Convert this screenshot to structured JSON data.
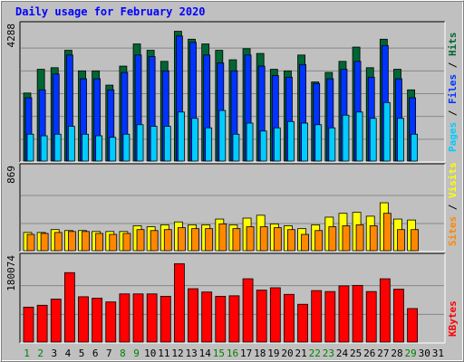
{
  "chart_data": {
    "title": "Daily usage for February 2020",
    "type": "bar",
    "days": [
      "1",
      "2",
      "3",
      "4",
      "5",
      "6",
      "7",
      "8",
      "9",
      "10",
      "11",
      "12",
      "13",
      "14",
      "15",
      "16",
      "17",
      "18",
      "19",
      "20",
      "21",
      "22",
      "23",
      "24",
      "25",
      "26",
      "27",
      "28",
      "29",
      "30",
      "31"
    ],
    "weekend_days": [
      "1",
      "2",
      "8",
      "9",
      "15",
      "16",
      "22",
      "23",
      "29"
    ],
    "legend_top": [
      "Pages",
      "Files",
      "Hits"
    ],
    "legend_mid": [
      "Sites",
      "Visits"
    ],
    "legend_bot": [
      "KBytes"
    ],
    "panels": {
      "top": {
        "ymax_label": "4288",
        "ymax": 4288,
        "hits": [
          2150,
          2900,
          2950,
          3500,
          2850,
          2850,
          2400,
          3000,
          3700,
          3500,
          3150,
          4100,
          3850,
          3700,
          3500,
          3200,
          3550,
          3400,
          2900,
          2850,
          3350,
          2500,
          2800,
          3150,
          3600,
          2950,
          3850,
          2900,
          2250,
          0,
          0
        ],
        "files": [
          2000,
          2250,
          2750,
          3350,
          2600,
          2600,
          2250,
          2800,
          3350,
          3300,
          2850,
          3950,
          3750,
          3350,
          3100,
          2850,
          3350,
          3000,
          2700,
          2650,
          3050,
          2450,
          2600,
          2900,
          3150,
          2650,
          3650,
          2600,
          2000,
          0,
          0
        ],
        "pages": [
          850,
          800,
          850,
          1100,
          850,
          800,
          750,
          850,
          1150,
          1100,
          1100,
          1550,
          1350,
          1050,
          1600,
          850,
          1200,
          950,
          1050,
          1250,
          1200,
          1150,
          1050,
          1450,
          1550,
          1350,
          1850,
          1350,
          850,
          0,
          0
        ]
      },
      "mid": {
        "ymax_label": "869",
        "ymax": 869,
        "visits": [
          190,
          190,
          220,
          210,
          210,
          200,
          200,
          200,
          260,
          250,
          270,
          300,
          270,
          270,
          330,
          270,
          340,
          370,
          280,
          260,
          230,
          270,
          350,
          390,
          400,
          360,
          500,
          330,
          320,
          0,
          0
        ],
        "sites": [
          170,
          180,
          190,
          200,
          200,
          180,
          170,
          180,
          220,
          210,
          220,
          240,
          230,
          230,
          280,
          230,
          250,
          250,
          240,
          220,
          170,
          210,
          250,
          260,
          270,
          260,
          390,
          220,
          220,
          0,
          0
        ]
      },
      "bot": {
        "ymax_label": "180074",
        "ymax": 180074,
        "kbytes": [
          74000,
          78000,
          91000,
          147000,
          96000,
          93000,
          85000,
          102000,
          102000,
          102000,
          97000,
          166000,
          113000,
          106000,
          97000,
          98000,
          134000,
          110000,
          115000,
          101000,
          80000,
          109000,
          107000,
          119000,
          120000,
          107000,
          134000,
          112000,
          71000,
          0,
          0
        ]
      }
    },
    "colors": {
      "hits": "#006633",
      "files": "#0033ff",
      "pages": "#00ccff",
      "sites": "#ff8800",
      "visits": "#ffff00",
      "kbytes": "#ff0000",
      "title": "#0000ff",
      "panel_bg": "#c0c0c0",
      "frame_bg": "#c0c0c0",
      "weekend_label": "#008000",
      "weekday_label": "#000000"
    }
  }
}
